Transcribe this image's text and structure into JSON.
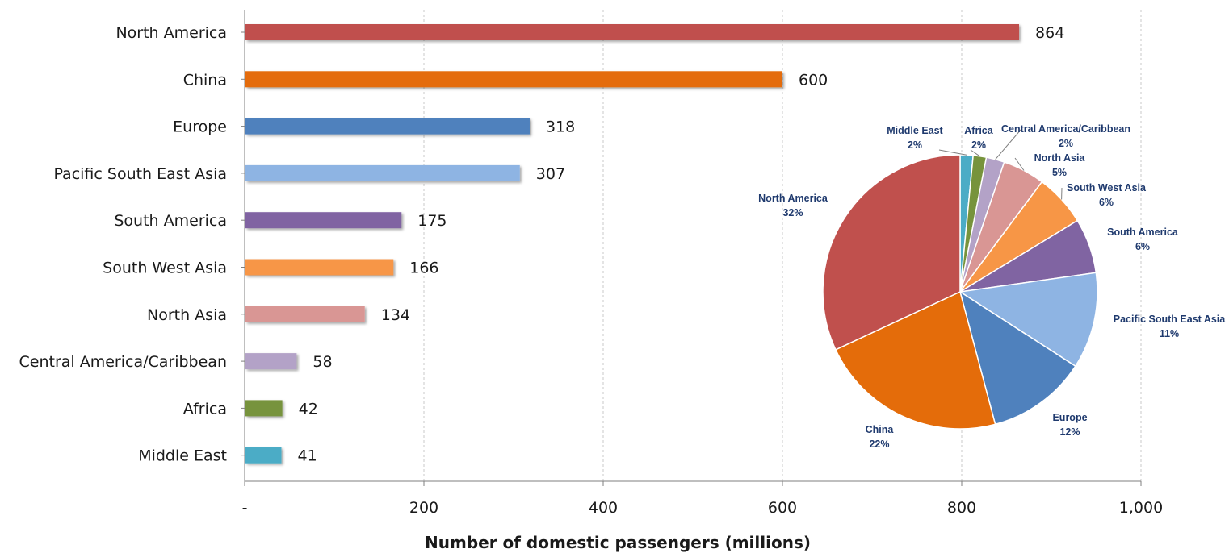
{
  "chart_data": [
    {
      "type": "bar",
      "orientation": "horizontal",
      "categories": [
        "North America",
        "China",
        "Europe",
        "Pacific South East Asia",
        "South America",
        "South West Asia",
        "North Asia",
        "Central America/Caribbean",
        "Africa",
        "Middle East"
      ],
      "values": [
        864,
        600,
        318,
        307,
        175,
        166,
        134,
        58,
        42,
        41
      ],
      "data_labels": [
        "864",
        "600",
        "318",
        "307",
        "175",
        "166",
        "134",
        "58",
        "42",
        "41"
      ],
      "colors": [
        "#c0504d",
        "#e46c0a",
        "#4f81bd",
        "#8eb4e3",
        "#8064a2",
        "#f79646",
        "#d99694",
        "#b3a2c7",
        "#77933c",
        "#4bacc6"
      ],
      "xlabel": "Number of domestic passengers (millions)",
      "xlim": [
        0,
        1000
      ],
      "xticks": [
        0,
        200,
        400,
        600,
        800,
        1000
      ],
      "xtick_labels": [
        "-",
        "200",
        "400",
        "600",
        "800",
        "1,000"
      ],
      "grid": "vertical dashed"
    },
    {
      "type": "pie",
      "start": "top",
      "direction": "clockwise",
      "slices": [
        {
          "name": "Middle East",
          "percent": "2%",
          "color": "#4bacc6"
        },
        {
          "name": "Africa",
          "percent": "2%",
          "color": "#77933c"
        },
        {
          "name": "Central America/Caribbean",
          "percent": "2%",
          "color": "#b3a2c7"
        },
        {
          "name": "North Asia",
          "percent": "5%",
          "color": "#d99694"
        },
        {
          "name": "South West Asia",
          "percent": "6%",
          "color": "#f79646"
        },
        {
          "name": "South America",
          "percent": "6%",
          "color": "#8064a2"
        },
        {
          "name": "Pacific South East Asia",
          "percent": "11%",
          "color": "#8eb4e3"
        },
        {
          "name": "Europe",
          "percent": "12%",
          "color": "#4f81bd"
        },
        {
          "name": "China",
          "percent": "22%",
          "color": "#e46c0a"
        },
        {
          "name": "North America",
          "percent": "32%",
          "color": "#c0504d"
        }
      ],
      "values": [
        41,
        42,
        58,
        134,
        166,
        175,
        307,
        318,
        600,
        864
      ]
    }
  ]
}
